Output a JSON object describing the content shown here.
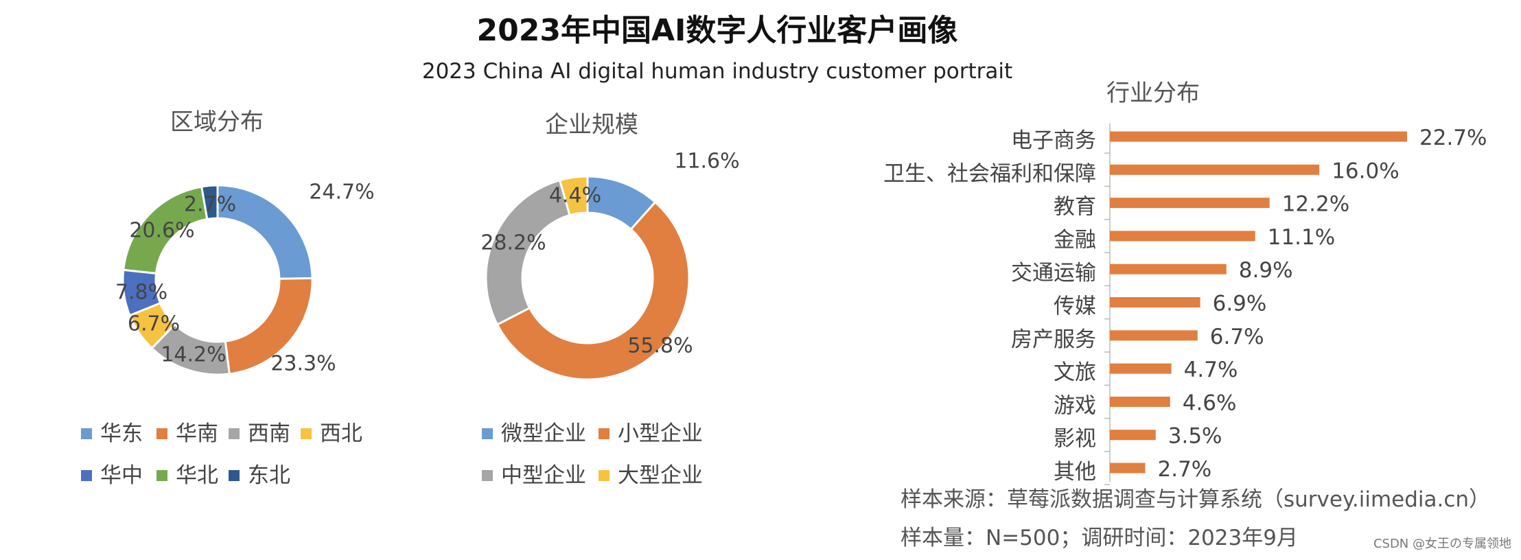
{
  "title": "2023年中国AI数字人行业客户画像",
  "subtitle": "2023 China AI digital human industry customer portrait",
  "source_line1": "样本来源：草莓派数据调查与计算系统（survey.iimedia.cn）",
  "source_line2": "样本量：N=500；调研时间：2023年9月",
  "watermark": "CSDN @女王の专属领地",
  "chart_data": [
    {
      "type": "pie",
      "title": "区域分布",
      "donut": true,
      "slices": [
        {
          "name": "华东",
          "value": 24.7,
          "label": "24.7%",
          "color": "#6A9BD2"
        },
        {
          "name": "华南",
          "value": 23.3,
          "label": "23.3%",
          "color": "#E07F40"
        },
        {
          "name": "西南",
          "value": 14.2,
          "label": "14.2%",
          "color": "#A5A5A5"
        },
        {
          "name": "西北",
          "value": 6.7,
          "label": "6.7%",
          "color": "#F6C242"
        },
        {
          "name": "华中",
          "value": 7.8,
          "label": "7.8%",
          "color": "#4C6FC2"
        },
        {
          "name": "华北",
          "value": 20.6,
          "label": "20.6%",
          "color": "#76A94E"
        },
        {
          "name": "东北",
          "value": 2.7,
          "label": "2.7%",
          "color": "#2C5A8E"
        }
      ],
      "legend_position": "bottom"
    },
    {
      "type": "pie",
      "title": "企业规模",
      "donut": true,
      "slices": [
        {
          "name": "微型企业",
          "value": 11.6,
          "label": "11.6%",
          "color": "#6A9BD2"
        },
        {
          "name": "小型企业",
          "value": 55.8,
          "label": "55.8%",
          "color": "#E07F40"
        },
        {
          "name": "中型企业",
          "value": 28.2,
          "label": "28.2%",
          "color": "#A5A5A5"
        },
        {
          "name": "大型企业",
          "value": 4.4,
          "label": "4.4%",
          "color": "#F6C242"
        }
      ],
      "legend_position": "bottom"
    },
    {
      "type": "bar",
      "orientation": "horizontal",
      "title": "行业分布",
      "categories": [
        "电子商务",
        "卫生、社会福利和保障",
        "教育",
        "金融",
        "交通运输",
        "传媒",
        "房产服务",
        "文旅",
        "游戏",
        "影视",
        "其他"
      ],
      "values": [
        22.7,
        16.0,
        12.2,
        11.1,
        8.9,
        6.9,
        6.7,
        4.7,
        4.6,
        3.5,
        2.7
      ],
      "labels": [
        "22.7%",
        "16.0%",
        "12.2%",
        "11.1%",
        "8.9%",
        "6.9%",
        "6.7%",
        "4.7%",
        "4.6%",
        "3.5%",
        "2.7%"
      ],
      "color": "#E07F40",
      "xlim": [
        0,
        25
      ],
      "grid": false
    }
  ]
}
